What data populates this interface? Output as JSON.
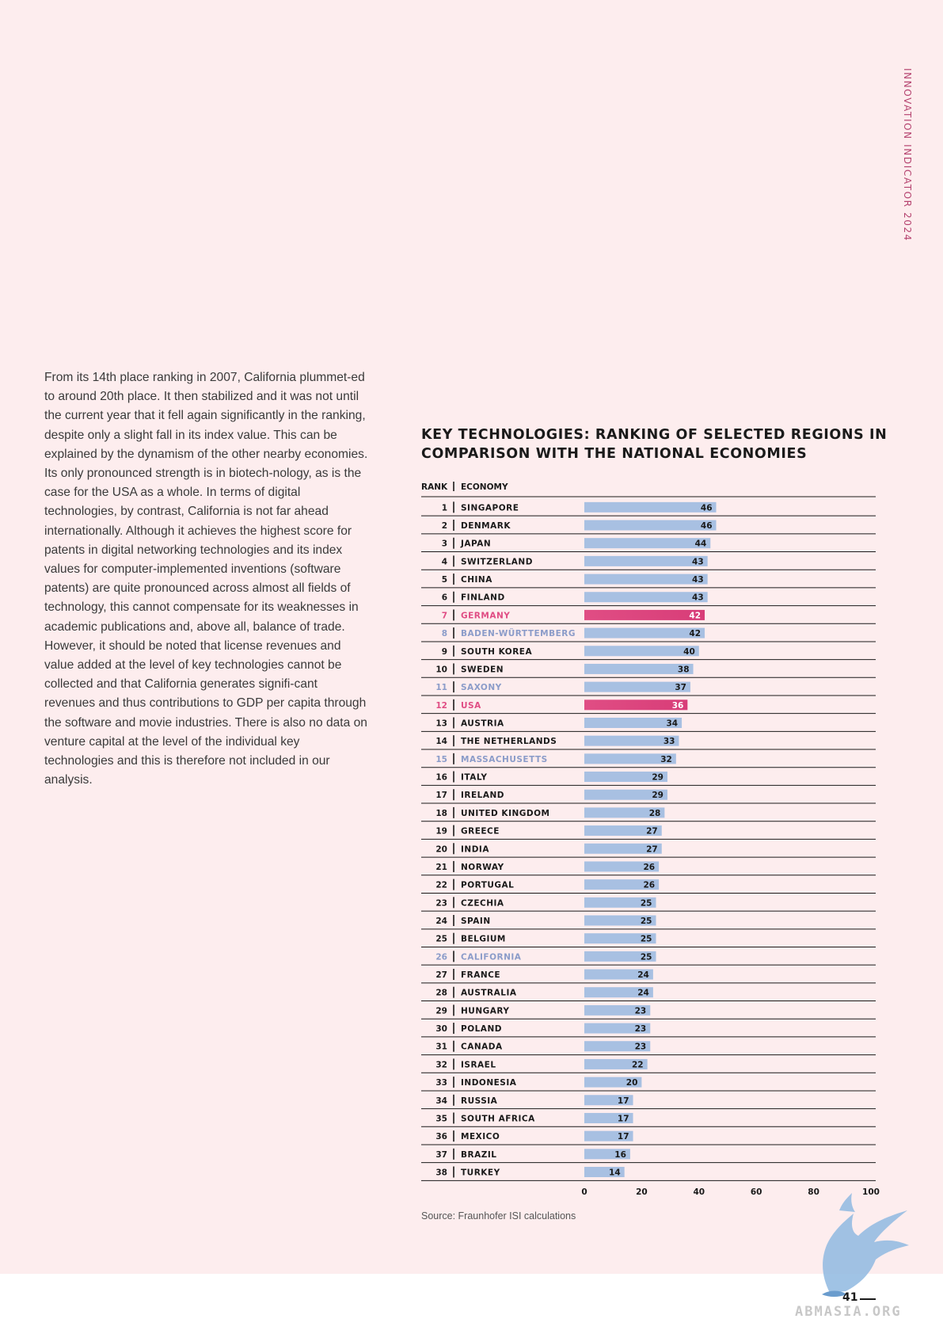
{
  "header": {
    "publication": "INNOVATION INDICATOR 2024"
  },
  "body_text": "From its 14th place ranking in 2007, California plummet-ed to around 20th place. It then stabilized and it was not until the current year that it fell again significantly in the ranking, despite only a slight fall in its index value. This can be explained by the dynamism of the other nearby economies. Its only pronounced strength is in biotech-nology, as is the case for the USA as a whole. In terms of digital technologies, by contrast, California is not far ahead internationally. Although it achieves the highest score for patents in digital networking technologies and its index values for computer-implemented inventions (software patents) are quite pronounced across almost all fields of technology, this cannot compensate for its weaknesses in academic publications and, above all, balance of trade. However, it should be noted that license revenues and value added at the level of key technologies cannot be collected and that California generates signifi-cant revenues and thus contributions to GDP per capita through the software and movie industries. There is also no data on venture capital at the level of the individual key technologies and this is therefore not included in our analysis.",
  "chart_data": {
    "type": "bar",
    "orientation": "horizontal",
    "title": "KEY TECHNOLOGIES: RANKING OF SELECTED REGIONS IN COMPARISON WITH THE NATIONAL ECONOMIES",
    "column_headers": {
      "rank": "RANK",
      "economy": "ECONOMY"
    },
    "xlim": [
      0,
      100
    ],
    "x_ticks": [
      0,
      20,
      40,
      60,
      80,
      100
    ],
    "colors": {
      "default": "#a8c0e2",
      "highlight": "#e04d84",
      "region_label": "#8b9cc9",
      "highlight_label": "#e04d84"
    },
    "rows": [
      {
        "rank": 1,
        "economy": "SINGAPORE",
        "value": 46,
        "kind": "country"
      },
      {
        "rank": 2,
        "economy": "DENMARK",
        "value": 46,
        "kind": "country"
      },
      {
        "rank": 3,
        "economy": "JAPAN",
        "value": 44,
        "kind": "country"
      },
      {
        "rank": 4,
        "economy": "SWITZERLAND",
        "value": 43,
        "kind": "country"
      },
      {
        "rank": 5,
        "economy": "CHINA",
        "value": 43,
        "kind": "country"
      },
      {
        "rank": 6,
        "economy": "FINLAND",
        "value": 43,
        "kind": "country"
      },
      {
        "rank": 7,
        "economy": "GERMANY",
        "value": 42,
        "kind": "highlight"
      },
      {
        "rank": 8,
        "economy": "BADEN-WÜRTTEMBERG",
        "value": 42,
        "kind": "region"
      },
      {
        "rank": 9,
        "economy": "SOUTH KOREA",
        "value": 40,
        "kind": "country"
      },
      {
        "rank": 10,
        "economy": "SWEDEN",
        "value": 38,
        "kind": "country"
      },
      {
        "rank": 11,
        "economy": "SAXONY",
        "value": 37,
        "kind": "region"
      },
      {
        "rank": 12,
        "economy": "USA",
        "value": 36,
        "kind": "highlight"
      },
      {
        "rank": 13,
        "economy": "AUSTRIA",
        "value": 34,
        "kind": "country"
      },
      {
        "rank": 14,
        "economy": "THE NETHERLANDS",
        "value": 33,
        "kind": "country"
      },
      {
        "rank": 15,
        "economy": "MASSACHUSETTS",
        "value": 32,
        "kind": "region"
      },
      {
        "rank": 16,
        "economy": "ITALY",
        "value": 29,
        "kind": "country"
      },
      {
        "rank": 17,
        "economy": "IRELAND",
        "value": 29,
        "kind": "country"
      },
      {
        "rank": 18,
        "economy": "UNITED KINGDOM",
        "value": 28,
        "kind": "country"
      },
      {
        "rank": 19,
        "economy": "GREECE",
        "value": 27,
        "kind": "country"
      },
      {
        "rank": 20,
        "economy": "INDIA",
        "value": 27,
        "kind": "country"
      },
      {
        "rank": 21,
        "economy": "NORWAY",
        "value": 26,
        "kind": "country"
      },
      {
        "rank": 22,
        "economy": "PORTUGAL",
        "value": 26,
        "kind": "country"
      },
      {
        "rank": 23,
        "economy": "CZECHIA",
        "value": 25,
        "kind": "country"
      },
      {
        "rank": 24,
        "economy": "SPAIN",
        "value": 25,
        "kind": "country"
      },
      {
        "rank": 25,
        "economy": "BELGIUM",
        "value": 25,
        "kind": "country"
      },
      {
        "rank": 26,
        "economy": "CALIFORNIA",
        "value": 25,
        "kind": "region"
      },
      {
        "rank": 27,
        "economy": "FRANCE",
        "value": 24,
        "kind": "country"
      },
      {
        "rank": 28,
        "economy": "AUSTRALIA",
        "value": 24,
        "kind": "country"
      },
      {
        "rank": 29,
        "economy": "HUNGARY",
        "value": 23,
        "kind": "country"
      },
      {
        "rank": 30,
        "economy": "POLAND",
        "value": 23,
        "kind": "country"
      },
      {
        "rank": 31,
        "economy": "CANADA",
        "value": 23,
        "kind": "country"
      },
      {
        "rank": 32,
        "economy": "ISRAEL",
        "value": 22,
        "kind": "country"
      },
      {
        "rank": 33,
        "economy": "INDONESIA",
        "value": 20,
        "kind": "country"
      },
      {
        "rank": 34,
        "economy": "RUSSIA",
        "value": 17,
        "kind": "country"
      },
      {
        "rank": 35,
        "economy": "SOUTH AFRICA",
        "value": 17,
        "kind": "country"
      },
      {
        "rank": 36,
        "economy": "MEXICO",
        "value": 17,
        "kind": "country"
      },
      {
        "rank": 37,
        "economy": "BRAZIL",
        "value": 16,
        "kind": "country"
      },
      {
        "rank": 38,
        "economy": "TURKEY",
        "value": 14,
        "kind": "country"
      }
    ]
  },
  "source": "Source: Fraunhofer ISI calculations",
  "footer": {
    "page_number": "41",
    "watermark": "ABMASIA.ORG"
  }
}
